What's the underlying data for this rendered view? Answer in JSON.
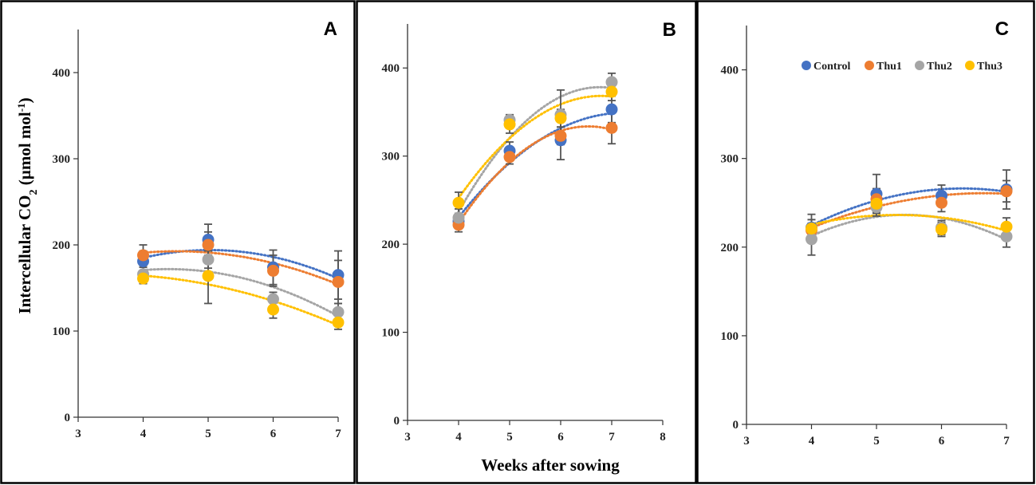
{
  "figure": {
    "ylabel_main": "Intercellular CO",
    "ylabel_sub": "2",
    "ylabel_mid": " (µmol mol",
    "ylabel_sup": "-1",
    "ylabel_end": ")",
    "xlabel": "Weeks after sowing"
  },
  "legend": {
    "items": [
      {
        "name": "Control",
        "color": "#4472c4"
      },
      {
        "name": "Thu1",
        "color": "#ed7d31"
      },
      {
        "name": "Thu2",
        "color": "#a5a5a5"
      },
      {
        "name": "Thu3",
        "color": "#ffc000"
      }
    ]
  },
  "chart_data": [
    {
      "type": "scatter",
      "panel": "A",
      "title": "A",
      "xlim": [
        3,
        7
      ],
      "ylim": [
        0,
        450
      ],
      "xticks": [
        3,
        4,
        5,
        6,
        7
      ],
      "yticks": [
        0,
        100,
        200,
        300,
        400
      ],
      "x": [
        4,
        5,
        6,
        7
      ],
      "trendline": "polynomial order 2 (dotted)",
      "series": [
        {
          "name": "Control",
          "color": "#4472c4",
          "values": [
            181,
            206,
            174,
            165
          ],
          "errors": [
            12,
            18,
            20,
            28
          ]
        },
        {
          "name": "Thu1",
          "color": "#ed7d31",
          "values": [
            188,
            200,
            170,
            157
          ],
          "errors": [
            12,
            15,
            18,
            25
          ]
        },
        {
          "name": "Thu2",
          "color": "#a5a5a5",
          "values": [
            166,
            183,
            137,
            122
          ],
          "errors": [
            8,
            10,
            8,
            10
          ]
        },
        {
          "name": "Thu3",
          "color": "#ffc000",
          "values": [
            161,
            164,
            125,
            110
          ],
          "errors": [
            6,
            32,
            10,
            8
          ]
        }
      ]
    },
    {
      "type": "scatter",
      "panel": "B",
      "title": "B",
      "xlim": [
        3,
        8
      ],
      "ylim": [
        0,
        450
      ],
      "xticks": [
        3,
        4,
        5,
        6,
        7,
        8
      ],
      "yticks": [
        0,
        100,
        200,
        300,
        400
      ],
      "x": [
        4,
        5,
        6,
        7
      ],
      "trendline": "polynomial order 2 (dotted)",
      "series": [
        {
          "name": "Control",
          "color": "#4472c4",
          "values": [
            226,
            306,
            318,
            353
          ],
          "errors": [
            8,
            10,
            22,
            15
          ]
        },
        {
          "name": "Thu1",
          "color": "#ed7d31",
          "values": [
            222,
            299,
            323,
            332
          ],
          "errors": [
            8,
            8,
            10,
            18
          ]
        },
        {
          "name": "Thu2",
          "color": "#a5a5a5",
          "values": [
            230,
            341,
            347,
            384
          ],
          "errors": [
            10,
            6,
            28,
            10
          ]
        },
        {
          "name": "Thu3",
          "color": "#ffc000",
          "values": [
            247,
            336,
            343,
            373
          ],
          "errors": [
            12,
            10,
            10,
            10
          ]
        }
      ]
    },
    {
      "type": "scatter",
      "panel": "C",
      "title": "C",
      "xlim": [
        3,
        7
      ],
      "ylim": [
        0,
        450
      ],
      "xticks": [
        3,
        4,
        5,
        6,
        7
      ],
      "yticks": [
        0,
        100,
        200,
        300,
        400
      ],
      "x": [
        4,
        5,
        6,
        7
      ],
      "legend": "top",
      "trendline": "polynomial order 2 (dotted)",
      "series": [
        {
          "name": "Control",
          "color": "#4472c4",
          "values": [
            222,
            260,
            258,
            265
          ],
          "errors": [
            15,
            22,
            12,
            22
          ]
        },
        {
          "name": "Thu1",
          "color": "#ed7d31",
          "values": [
            219,
            254,
            250,
            263
          ],
          "errors": [
            12,
            12,
            10,
            12
          ]
        },
        {
          "name": "Thu2",
          "color": "#a5a5a5",
          "values": [
            209,
            245,
            222,
            212
          ],
          "errors": [
            18,
            10,
            8,
            12
          ]
        },
        {
          "name": "Thu3",
          "color": "#ffc000",
          "values": [
            221,
            249,
            220,
            223
          ],
          "errors": [
            10,
            10,
            8,
            10
          ]
        }
      ]
    }
  ]
}
